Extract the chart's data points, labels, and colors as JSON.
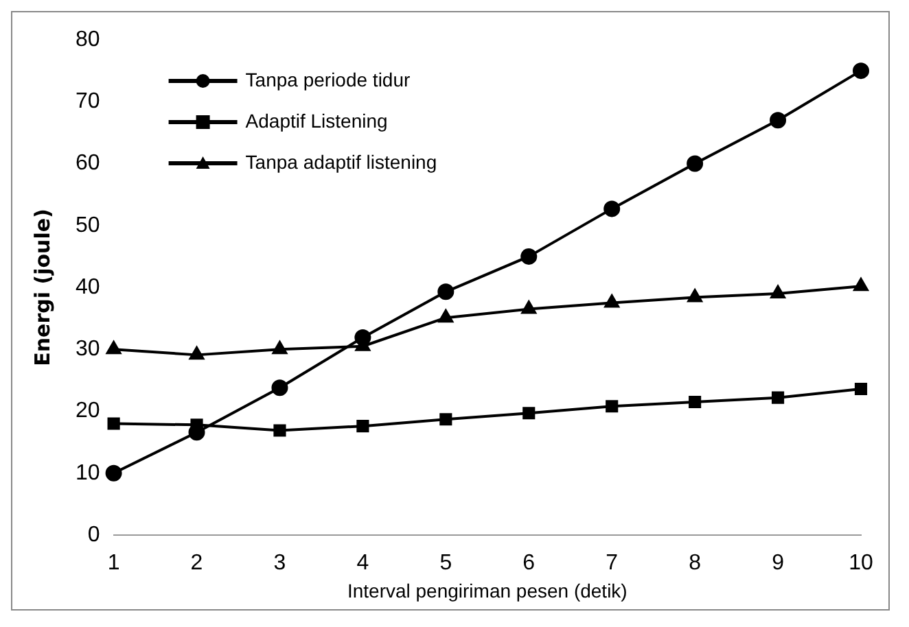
{
  "chart_data": {
    "type": "line",
    "xlabel": "Interval pengiriman pesen (detik)",
    "ylabel": "Energi (joule)",
    "categories": [
      "1",
      "2",
      "3",
      "4",
      "5",
      "6",
      "7",
      "8",
      "9",
      "10"
    ],
    "series": [
      {
        "name": "Tanpa periode tidur",
        "color": "#000000",
        "marker": "circle",
        "values": [
          10,
          16.6,
          23.8,
          31.9,
          39.3,
          45,
          52.7,
          60,
          67,
          75
        ]
      },
      {
        "name": "Adaptif Listening",
        "color": "#000000",
        "marker": "square",
        "values": [
          18,
          17.8,
          16.9,
          17.6,
          18.7,
          19.7,
          20.8,
          21.5,
          22.2,
          23.6
        ]
      },
      {
        "name": "Tanpa adaptif listening",
        "color": "#000000",
        "marker": "triangle",
        "values": [
          30,
          29.1,
          30,
          30.5,
          35.1,
          36.5,
          37.5,
          38.4,
          39,
          40.2
        ]
      }
    ],
    "ylim": [
      0,
      80
    ],
    "yticks": [
      0,
      10,
      20,
      30,
      40,
      50,
      60,
      70,
      80
    ],
    "grid": false,
    "legend": "top left",
    "line_style": "solid"
  }
}
